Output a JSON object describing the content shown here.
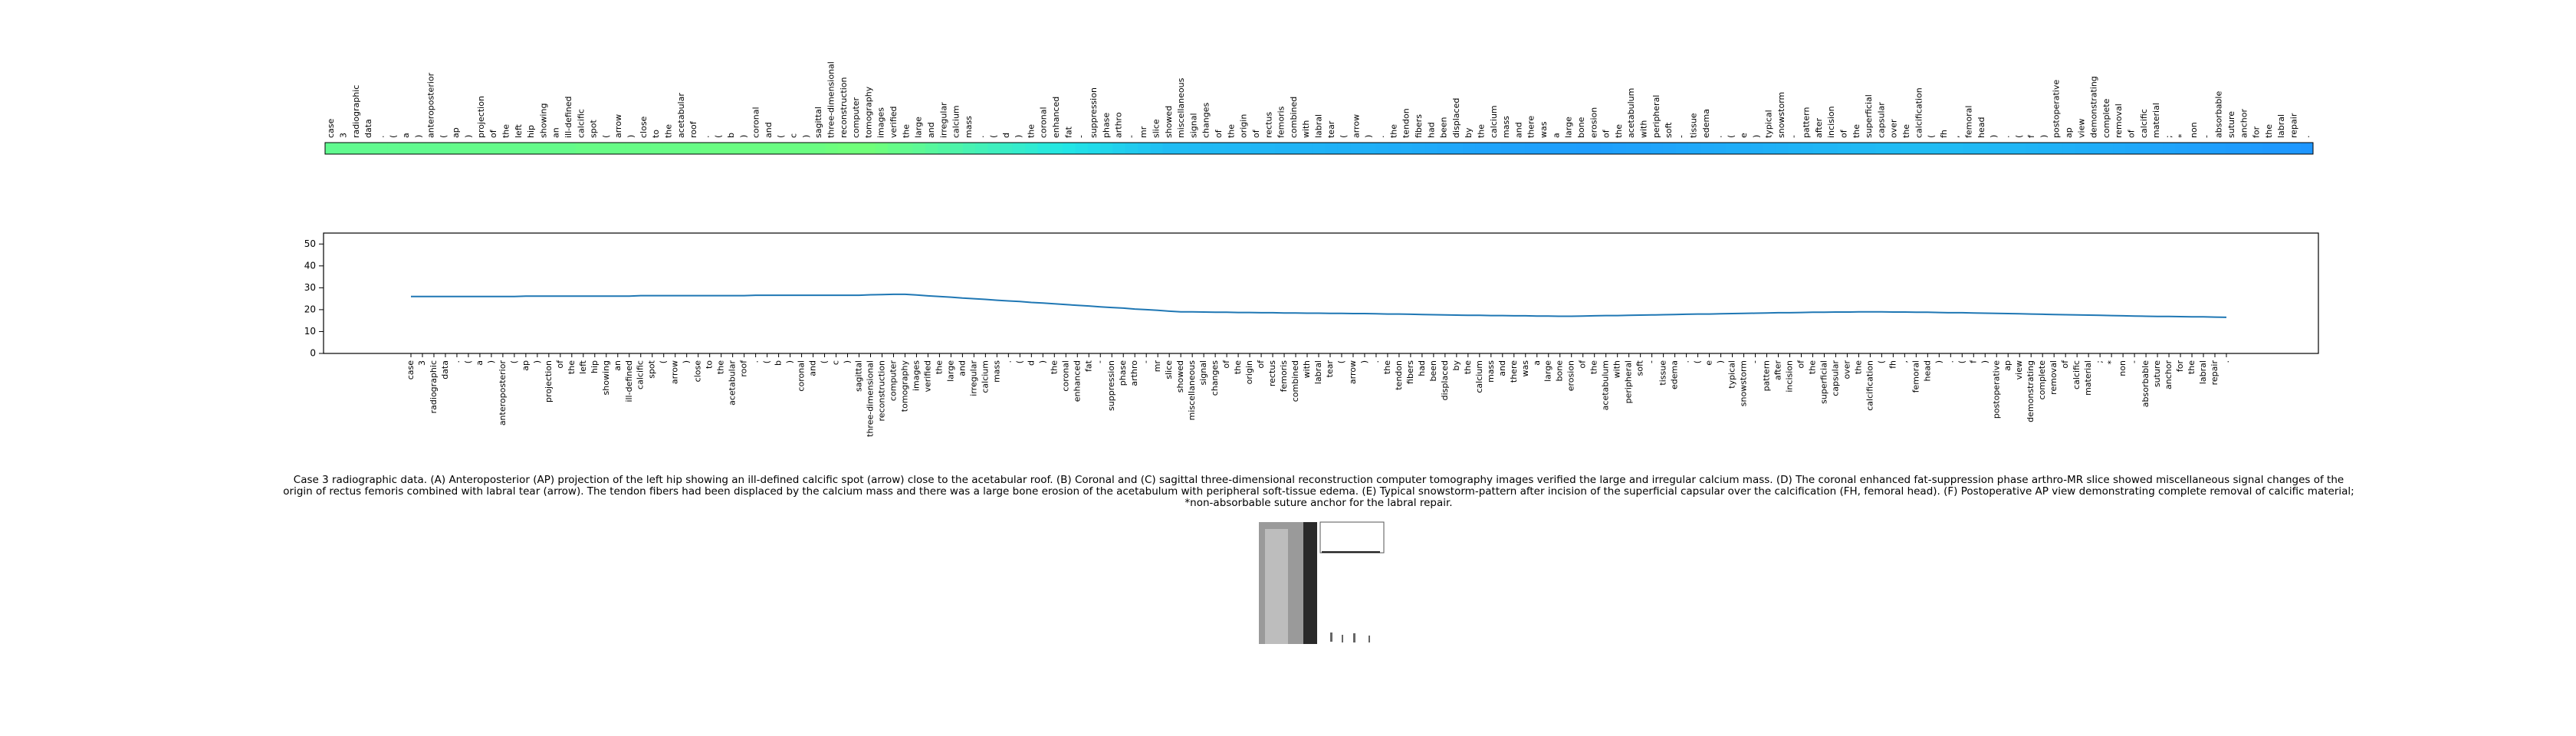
{
  "chart_data": {
    "type": "line",
    "categories": [
      "case",
      "3",
      "radiographic",
      "data",
      ".",
      "(",
      "a",
      ")",
      "anteroposterior",
      "(",
      "ap",
      ")",
      "projection",
      "of",
      "the",
      "left",
      "hip",
      "showing",
      "an",
      "ill-defined",
      "calcific",
      "spot",
      "(",
      "arrow",
      ")",
      "close",
      "to",
      "the",
      "acetabular",
      "roof",
      ".",
      "(",
      "b",
      ")",
      "coronal",
      "and",
      "(",
      "c",
      ")",
      "sagittal",
      "three-dimensional",
      "reconstruction",
      "computer",
      "tomography",
      "images",
      "verified",
      "the",
      "large",
      "and",
      "irregular",
      "calcium",
      "mass",
      ".",
      "(",
      "d",
      ")",
      "the",
      "coronal",
      "enhanced",
      "fat",
      "-",
      "suppression",
      "phase",
      "arthro",
      "-",
      "mr",
      "slice",
      "showed",
      "miscellaneous",
      "signal",
      "changes",
      "of",
      "the",
      "origin",
      "of",
      "rectus",
      "femoris",
      "combined",
      "with",
      "labral",
      "tear",
      "(",
      "arrow",
      ")",
      ".",
      "the",
      "tendon",
      "fibers",
      "had",
      "been",
      "displaced",
      "by",
      "the",
      "calcium",
      "mass",
      "and",
      "there",
      "was",
      "a",
      "large",
      "bone",
      "erosion",
      "of",
      "the",
      "acetabulum",
      "with",
      "peripheral",
      "soft",
      "-",
      "tissue",
      "edema",
      ".",
      "(",
      "e",
      ")",
      "typical",
      "snowstorm",
      "-",
      "pattern",
      "after",
      "incision",
      "of",
      "the",
      "superficial",
      "capsular",
      "over",
      "the",
      "calcification",
      "(",
      "fh",
      ",",
      "femoral",
      "head",
      ")",
      ".",
      "(",
      "f",
      ")",
      "postoperative",
      "ap",
      "view",
      "demonstrating",
      "complete",
      "removal",
      "of",
      "calcific",
      "material",
      ";",
      "*",
      "non",
      "-",
      "absorbable",
      "suture",
      "anchor",
      "for",
      "the",
      "labral",
      "repair",
      "."
    ],
    "values": [
      26.0,
      26.0,
      26.0,
      26.0,
      26.0,
      26.0,
      26.0,
      26.0,
      26.0,
      26.0,
      26.2,
      26.2,
      26.2,
      26.2,
      26.2,
      26.2,
      26.2,
      26.2,
      26.2,
      26.2,
      26.4,
      26.4,
      26.4,
      26.4,
      26.4,
      26.4,
      26.4,
      26.4,
      26.4,
      26.4,
      26.6,
      26.6,
      26.6,
      26.6,
      26.6,
      26.6,
      26.6,
      26.6,
      26.6,
      26.6,
      26.8,
      26.9,
      27.0,
      27.0,
      26.7,
      26.3,
      26.0,
      25.7,
      25.3,
      25.0,
      24.7,
      24.3,
      24.0,
      23.7,
      23.3,
      23.0,
      22.7,
      22.3,
      22.0,
      21.7,
      21.3,
      21.0,
      20.7,
      20.3,
      20.0,
      19.7,
      19.3,
      19.0,
      19.0,
      18.9,
      18.8,
      18.8,
      18.7,
      18.7,
      18.6,
      18.6,
      18.5,
      18.5,
      18.4,
      18.4,
      18.3,
      18.3,
      18.2,
      18.2,
      18.1,
      18.0,
      18.0,
      17.9,
      17.8,
      17.7,
      17.6,
      17.5,
      17.4,
      17.4,
      17.3,
      17.3,
      17.2,
      17.2,
      17.1,
      17.1,
      17.0,
      17.0,
      17.1,
      17.2,
      17.3,
      17.3,
      17.4,
      17.5,
      17.6,
      17.7,
      17.8,
      17.9,
      18.0,
      18.0,
      18.1,
      18.2,
      18.3,
      18.4,
      18.5,
      18.6,
      18.6,
      18.7,
      18.8,
      18.8,
      18.9,
      18.9,
      19.0,
      19.0,
      19.0,
      18.9,
      18.9,
      18.8,
      18.8,
      18.7,
      18.6,
      18.6,
      18.5,
      18.4,
      18.3,
      18.2,
      18.1,
      18.0,
      17.9,
      17.8,
      17.7,
      17.6,
      17.5,
      17.4,
      17.3,
      17.2,
      17.1,
      17.0,
      16.9,
      16.9,
      16.8,
      16.7,
      16.7,
      16.6,
      16.5
    ],
    "color": "#1f77b4",
    "strip_colors": [
      "#1e96ff",
      "#22e6e6",
      "#70ff7a"
    ],
    "ylim": [
      0,
      55
    ],
    "yticks": [
      0,
      10,
      20,
      30,
      40,
      50
    ],
    "caption": [
      "Case 3 radiographic data. (A) Anteroposterior (AP) projection of the left hip showing an ill-defined calcific spot (arrow) close to the acetabular roof. (B) Coronal and (C) sagittal three-dimensional reconstruction computer tomography images verified the large and irregular calcium mass. (D) The coronal enhanced fat-suppression phase arthro-MR slice showed miscellaneous signal changes of the",
      "origin of rectus femoris combined with labral tear (arrow). The tendon fibers had been displaced by the calcium mass and there was a large bone erosion of the acetabulum with peripheral soft-tissue edema. (E) Typical snowstorm-pattern after incision of the superficial capsular over the calcification (FH, femoral head). (F) Postoperative AP view demonstrating complete removal of calcific material;",
      "*non-absorbable suture anchor for the labral repair."
    ]
  }
}
